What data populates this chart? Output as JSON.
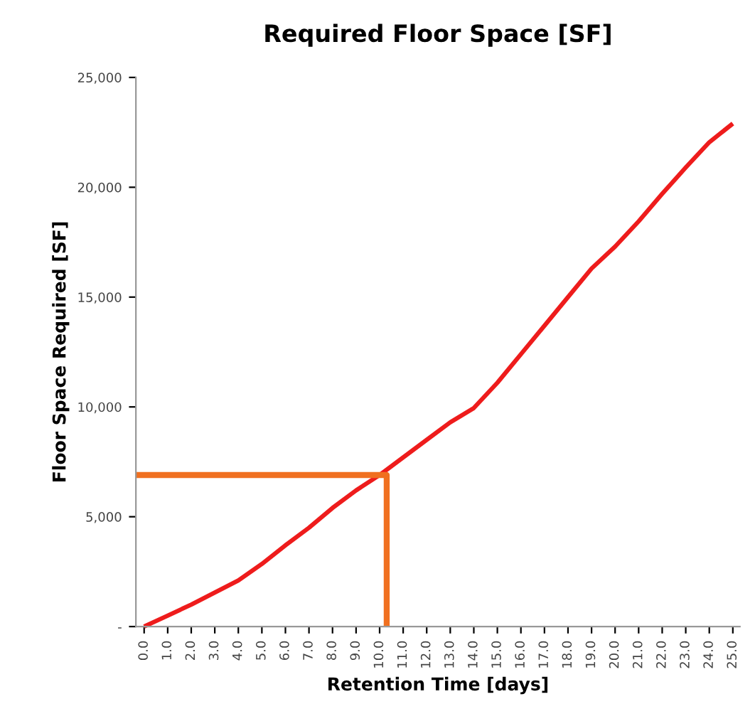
{
  "chart_data": {
    "type": "line",
    "title": "Required Floor Space [SF]",
    "xlabel": "Retention Time [days]",
    "ylabel": "Floor Space Required [SF]",
    "series": [
      {
        "color": "#ee1c1c",
        "x": [
          0,
          1,
          2,
          3,
          4,
          5,
          6,
          7,
          8,
          9,
          10,
          11,
          12,
          13,
          14,
          15,
          16,
          17,
          18,
          19,
          20,
          21,
          22,
          23,
          24,
          25
        ],
        "values": [
          0,
          500,
          1000,
          1550,
          2100,
          2850,
          3700,
          4500,
          5400,
          6200,
          6900,
          7700,
          8500,
          9300,
          9950,
          11100,
          12400,
          13700,
          15000,
          16300,
          17300,
          18450,
          19700,
          20900,
          22050,
          22900
        ]
      },
      {
        "color": "#f07020",
        "x": [
          -0.35,
          10.3,
          10.3
        ],
        "values": [
          6900,
          6900,
          0
        ]
      }
    ],
    "xlim": [
      -0.35,
      25.3
    ],
    "xticks": [
      {
        "value": 0,
        "label": "0.0"
      },
      {
        "value": 1,
        "label": "1.0"
      },
      {
        "value": 2,
        "label": "2.0"
      },
      {
        "value": 3,
        "label": "3.0"
      },
      {
        "value": 4,
        "label": "4.0"
      },
      {
        "value": 5,
        "label": "5.0"
      },
      {
        "value": 6,
        "label": "6.0"
      },
      {
        "value": 7,
        "label": "7.0"
      },
      {
        "value": 8,
        "label": "8.0"
      },
      {
        "value": 9,
        "label": "9.0"
      },
      {
        "value": 10,
        "label": "10.0"
      },
      {
        "value": 11,
        "label": "11.0"
      },
      {
        "value": 12,
        "label": "12.0"
      },
      {
        "value": 13,
        "label": "13.0"
      },
      {
        "value": 14,
        "label": "14.0"
      },
      {
        "value": 15,
        "label": "15.0"
      },
      {
        "value": 16,
        "label": "16.0"
      },
      {
        "value": 17,
        "label": "17.0"
      },
      {
        "value": 18,
        "label": "18.0"
      },
      {
        "value": 19,
        "label": "19.0"
      },
      {
        "value": 20,
        "label": "20.0"
      },
      {
        "value": 21,
        "label": "21.0"
      },
      {
        "value": 22,
        "label": "22.0"
      },
      {
        "value": 23,
        "label": "23.0"
      },
      {
        "value": 24,
        "label": "24.0"
      },
      {
        "value": 25,
        "label": "25.0"
      }
    ],
    "ylim": [
      0,
      25000
    ],
    "yticks": [
      {
        "value": 0,
        "label": "-"
      },
      {
        "value": 5000,
        "label": "5,000"
      },
      {
        "value": 10000,
        "label": "10,000"
      },
      {
        "value": 15000,
        "label": "15,000"
      },
      {
        "value": 20000,
        "label": "20,000"
      },
      {
        "value": 25000,
        "label": "25,000"
      }
    ],
    "marker": "none",
    "line_style": "solid"
  }
}
